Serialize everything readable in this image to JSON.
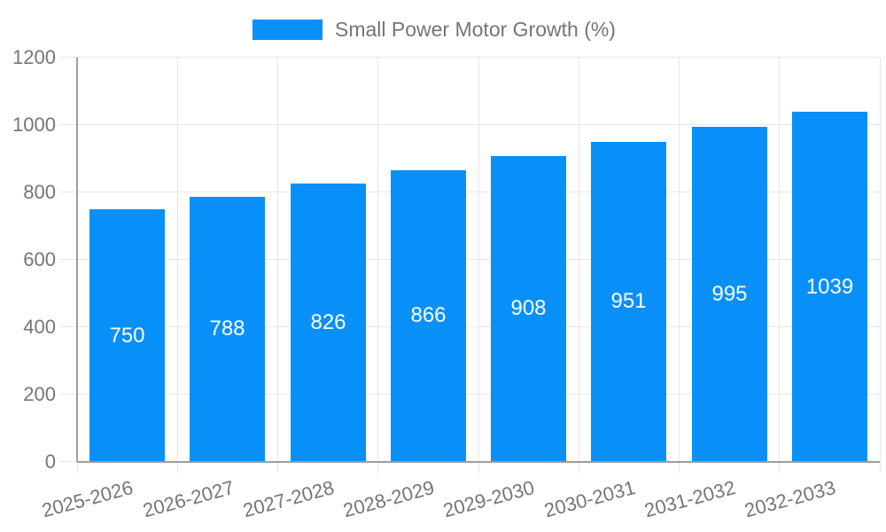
{
  "chart_data": {
    "type": "bar",
    "title": "Small Power Motor Growth (%)",
    "categories": [
      "2025-2026",
      "2026-2027",
      "2027-2028",
      "2028-2029",
      "2029-2030",
      "2030-2031",
      "2031-2032",
      "2032-2033"
    ],
    "series": [
      {
        "name": "Small Power Motor Growth (%)",
        "values": [
          750,
          788,
          826,
          866,
          908,
          951,
          995,
          1039
        ]
      }
    ],
    "xlabel": "",
    "ylabel": "",
    "ylim": [
      0,
      1200
    ],
    "yticks": [
      0,
      200,
      400,
      600,
      800,
      1000,
      1200
    ],
    "grid": true,
    "legend_position": "top-center",
    "bar_labels": "inside-center",
    "colors": {
      "bar": "#0890F8",
      "bar_label": "#FFFFFF",
      "axis_text": "#757575",
      "grid_line": "#E6E6E6",
      "axis_line": "#9E9E9E"
    }
  }
}
